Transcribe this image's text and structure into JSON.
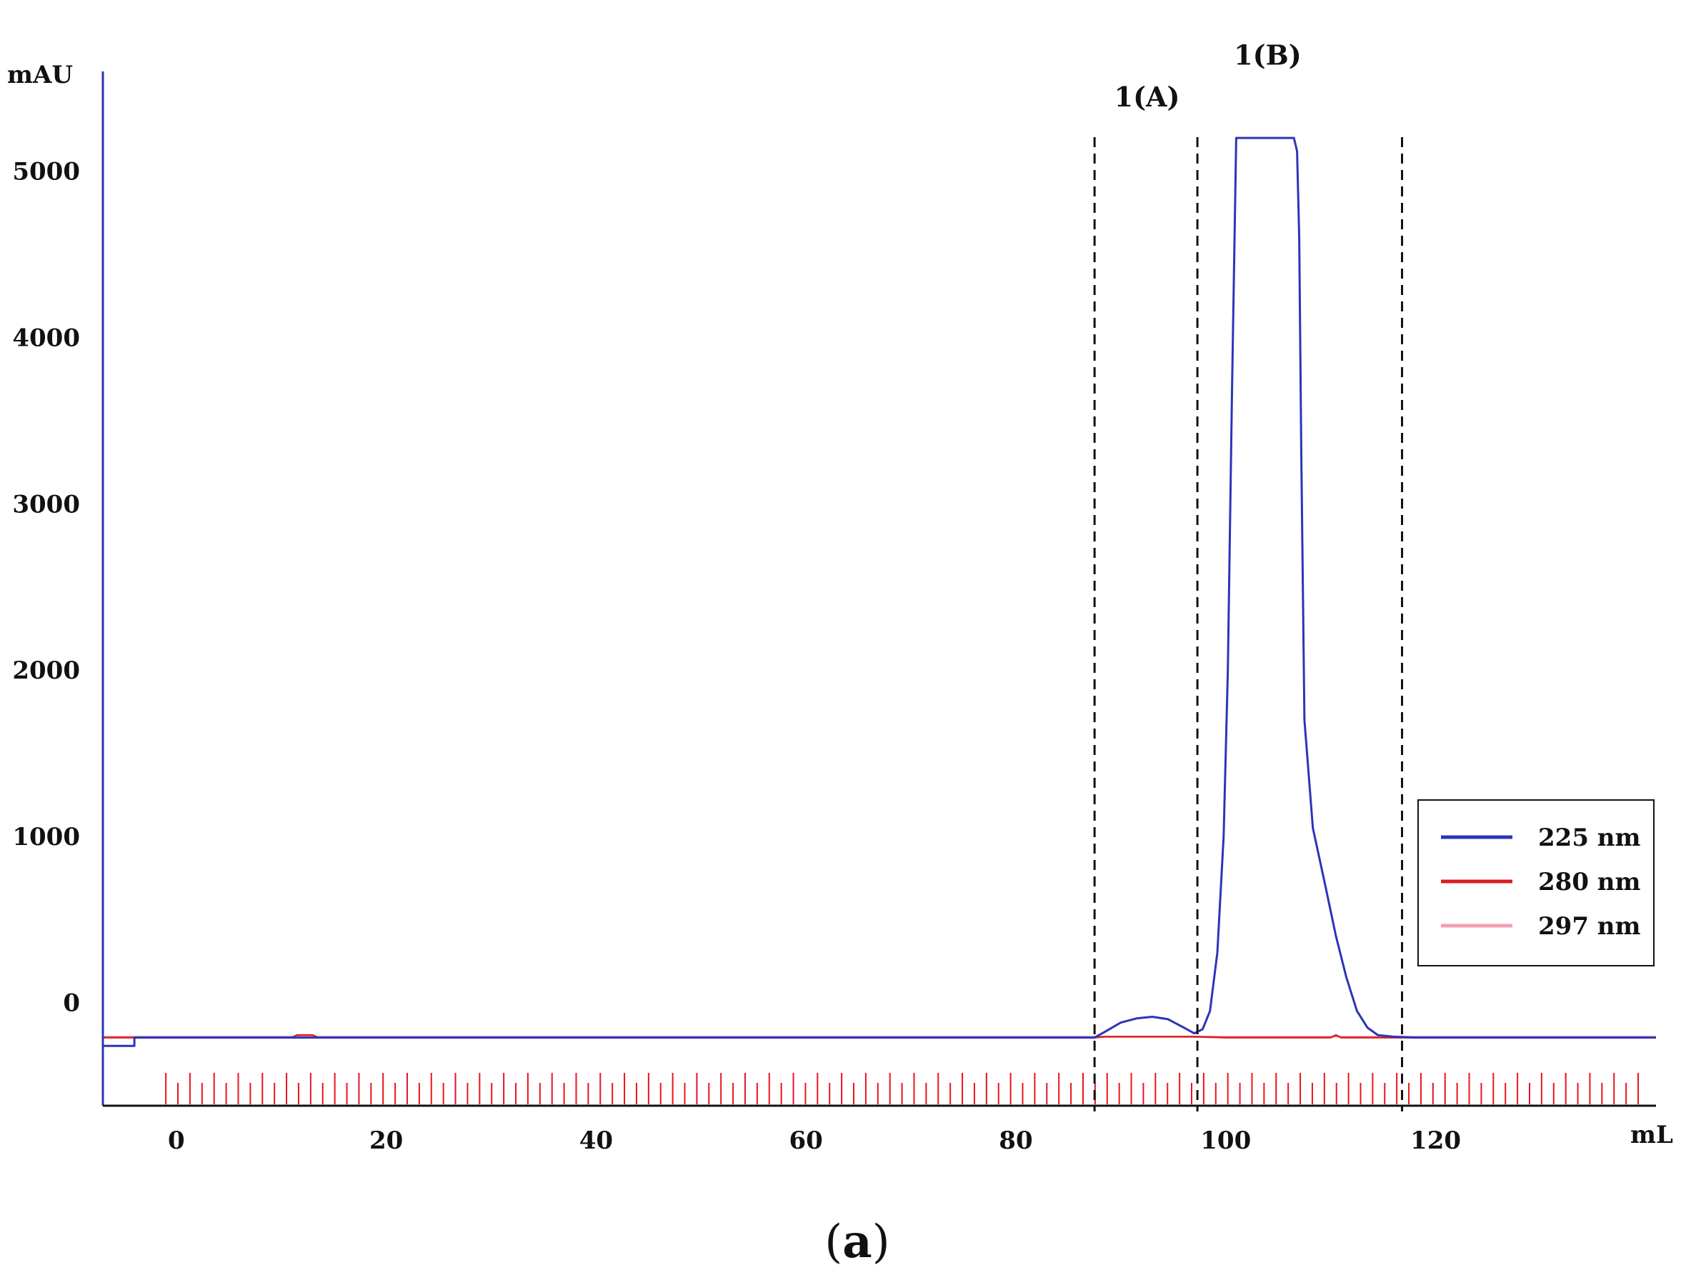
{
  "chart_data": {
    "type": "line",
    "panel_label": "a",
    "xlabel": "mL",
    "ylabel": "mAU",
    "xlim": [
      -7,
      141
    ],
    "ylim": [
      -620,
      5600
    ],
    "x_ticks": [
      0,
      20,
      40,
      60,
      80,
      100,
      120
    ],
    "x_tick_labels": [
      "0",
      "20",
      "40",
      "60",
      "80",
      "100",
      "120"
    ],
    "y_ticks": [
      0,
      1000,
      2000,
      3000,
      4000,
      5000
    ],
    "y_tick_labels": [
      "0",
      "1000",
      "2000",
      "3000",
      "4000",
      "5000"
    ],
    "grid": false,
    "legend": {
      "position": "right",
      "entries": [
        {
          "label": "225 nm",
          "color": "#2b35b8"
        },
        {
          "label": "280 nm",
          "color": "#d81e1e"
        },
        {
          "label": "297 nm",
          "color": "#f5a0b4"
        }
      ]
    },
    "fraction_boundaries": [
      87.5,
      97.3,
      116.8
    ],
    "fraction_labels": [
      {
        "text": "1(A)",
        "x": 92.5,
        "y": 5450
      },
      {
        "text": "1(B)",
        "x": 104,
        "y": 5700
      }
    ],
    "fraction_marks": {
      "start": -1,
      "end": 140,
      "step": 1.15,
      "color": "#e8141e"
    },
    "series": [
      {
        "name": "225 nm",
        "color": "#2b35b8",
        "points": [
          [
            -7,
            -260
          ],
          [
            -4,
            -260
          ],
          [
            -4,
            -210
          ],
          [
            0,
            -210
          ],
          [
            20,
            -210
          ],
          [
            40,
            -210
          ],
          [
            60,
            -210
          ],
          [
            80,
            -210
          ],
          [
            87.5,
            -210
          ],
          [
            88.5,
            -175
          ],
          [
            90,
            -120
          ],
          [
            91.5,
            -95
          ],
          [
            93,
            -85
          ],
          [
            94.5,
            -100
          ],
          [
            96,
            -150
          ],
          [
            97,
            -185
          ],
          [
            97.8,
            -160
          ],
          [
            98.5,
            -50
          ],
          [
            99.2,
            300
          ],
          [
            99.8,
            1000
          ],
          [
            100.2,
            2000
          ],
          [
            100.6,
            3700
          ],
          [
            101,
            5200
          ],
          [
            101.5,
            5200
          ],
          [
            106.5,
            5200
          ],
          [
            106.8,
            5120
          ],
          [
            107,
            4600
          ],
          [
            107.2,
            3300
          ],
          [
            107.5,
            1700
          ],
          [
            108.3,
            1050
          ],
          [
            109.5,
            700
          ],
          [
            110.5,
            400
          ],
          [
            111.5,
            150
          ],
          [
            112.5,
            -50
          ],
          [
            113.5,
            -150
          ],
          [
            114.5,
            -195
          ],
          [
            116,
            -205
          ],
          [
            118,
            -210
          ],
          [
            130,
            -210
          ],
          [
            141,
            -210
          ]
        ]
      },
      {
        "name": "280 nm",
        "color": "#d81e1e",
        "points": [
          [
            -7,
            -210
          ],
          [
            -4,
            -210
          ],
          [
            11,
            -210
          ],
          [
            11.5,
            -195
          ],
          [
            13,
            -195
          ],
          [
            13.5,
            -210
          ],
          [
            87.5,
            -210
          ],
          [
            88.5,
            -205
          ],
          [
            97,
            -205
          ],
          [
            100,
            -210
          ],
          [
            110,
            -210
          ],
          [
            110.5,
            -195
          ],
          [
            111,
            -210
          ],
          [
            141,
            -210
          ]
        ]
      },
      {
        "name": "297 nm",
        "color": "#f5a0b4",
        "points": [
          [
            -7,
            -205
          ],
          [
            -4,
            -205
          ],
          [
            141,
            -205
          ]
        ]
      }
    ]
  }
}
